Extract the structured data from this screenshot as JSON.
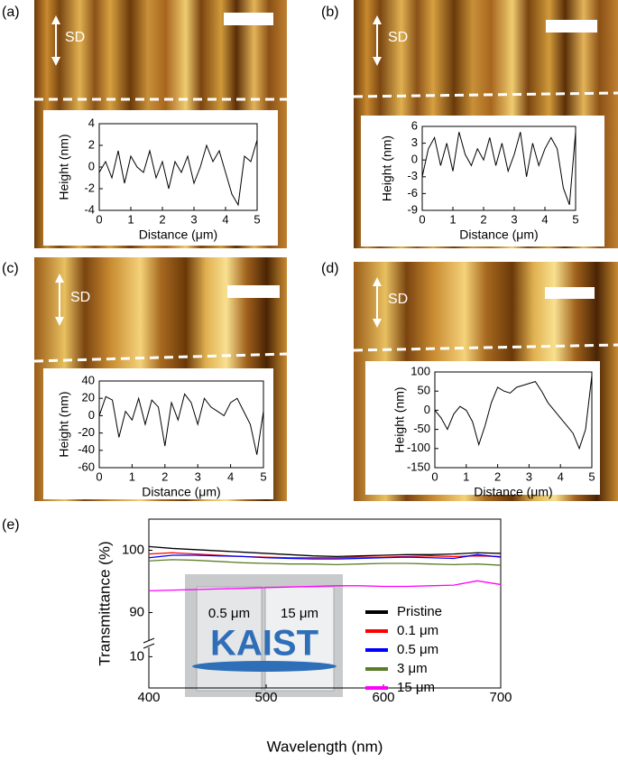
{
  "chart_data": [
    {
      "type": "line",
      "panel_label": "(a)",
      "annotation": "SD",
      "xlabel": "Distance (μm)",
      "ylabel": "Height (nm)",
      "x": [
        0,
        0.2,
        0.4,
        0.6,
        0.8,
        1,
        1.2,
        1.4,
        1.6,
        1.8,
        2,
        2.2,
        2.4,
        2.6,
        2.8,
        3,
        3.2,
        3.4,
        3.6,
        3.8,
        4,
        4.2,
        4.4,
        4.6,
        4.8,
        5
      ],
      "values": [
        -0.5,
        0.5,
        -1,
        1.5,
        -1.5,
        1,
        0,
        -0.5,
        1.5,
        -1,
        0.5,
        -2,
        0.5,
        -0.5,
        1,
        -1.5,
        0,
        2,
        0.5,
        1.5,
        -0.5,
        -2.5,
        -3.5,
        1,
        0.5,
        2.5
      ],
      "color": "#000000",
      "xlim": [
        0,
        5
      ],
      "xticks": [
        0,
        1,
        2,
        3,
        4,
        5
      ],
      "ylim": [
        -4,
        4
      ],
      "yticks": [
        -4,
        -2,
        0,
        2,
        4
      ]
    },
    {
      "type": "line",
      "panel_label": "(b)",
      "annotation": "SD",
      "xlabel": "Distance (μm)",
      "ylabel": "Height (nm)",
      "x": [
        0,
        0.2,
        0.4,
        0.6,
        0.8,
        1,
        1.2,
        1.4,
        1.6,
        1.8,
        2,
        2.2,
        2.4,
        2.6,
        2.8,
        3,
        3.2,
        3.4,
        3.6,
        3.8,
        4,
        4.2,
        4.4,
        4.6,
        4.8,
        5
      ],
      "values": [
        -3,
        2,
        4,
        -1,
        3,
        -2,
        5,
        1,
        -1,
        2,
        0,
        4,
        -1,
        3,
        -2,
        1,
        5,
        -3,
        3,
        -1,
        2,
        4,
        2,
        -5,
        -8,
        5
      ],
      "color": "#000000",
      "xlim": [
        0,
        5
      ],
      "xticks": [
        0,
        1,
        2,
        3,
        4,
        5
      ],
      "ylim": [
        -9,
        6
      ],
      "yticks": [
        -9,
        -6,
        -3,
        0,
        3,
        6
      ]
    },
    {
      "type": "line",
      "panel_label": "(c)",
      "annotation": "SD",
      "xlabel": "Distance (μm)",
      "ylabel": "Height (nm)",
      "x": [
        0,
        0.2,
        0.4,
        0.6,
        0.8,
        1,
        1.2,
        1.4,
        1.6,
        1.8,
        2,
        2.2,
        2.4,
        2.6,
        2.8,
        3,
        3.2,
        3.4,
        3.6,
        3.8,
        4,
        4.2,
        4.4,
        4.6,
        4.8,
        5
      ],
      "values": [
        0,
        22,
        18,
        -25,
        5,
        -5,
        20,
        -10,
        18,
        10,
        -35,
        15,
        -5,
        25,
        15,
        -10,
        20,
        10,
        5,
        0,
        15,
        20,
        5,
        -10,
        -45,
        5
      ],
      "color": "#000000",
      "xlim": [
        0,
        5
      ],
      "xticks": [
        0,
        1,
        2,
        3,
        4,
        5
      ],
      "ylim": [
        -60,
        40
      ],
      "yticks": [
        -60,
        -40,
        -20,
        0,
        20,
        40
      ]
    },
    {
      "type": "line",
      "panel_label": "(d)",
      "annotation": "SD",
      "xlabel": "Distance (μm)",
      "ylabel": "Height (nm)",
      "x": [
        0,
        0.2,
        0.4,
        0.6,
        0.8,
        1,
        1.2,
        1.4,
        1.6,
        1.8,
        2,
        2.2,
        2.4,
        2.6,
        2.8,
        3,
        3.2,
        3.4,
        3.6,
        3.8,
        4,
        4.2,
        4.4,
        4.6,
        4.8,
        5
      ],
      "values": [
        0,
        -20,
        -50,
        -10,
        10,
        0,
        -30,
        -90,
        -40,
        20,
        60,
        50,
        45,
        60,
        65,
        70,
        75,
        50,
        20,
        0,
        -20,
        -40,
        -60,
        -100,
        -50,
        90
      ],
      "color": "#000000",
      "xlim": [
        0,
        5
      ],
      "xticks": [
        0,
        1,
        2,
        3,
        4,
        5
      ],
      "ylim": [
        -150,
        100
      ],
      "yticks": [
        -150,
        -100,
        -50,
        0,
        50,
        100
      ]
    },
    {
      "type": "line",
      "panel_label": "(e)",
      "xlabel": "Wavelength (nm)",
      "ylabel": "Transmittance (%)",
      "photo_labels": [
        "0.5 μm",
        "15 μm",
        "KAIST"
      ],
      "x": [
        400,
        420,
        440,
        460,
        480,
        500,
        520,
        540,
        560,
        580,
        600,
        620,
        640,
        660,
        680,
        700
      ],
      "series": [
        {
          "name": "Pristine",
          "color": "#000000",
          "values": [
            100.6,
            100.3,
            100.1,
            99.9,
            99.7,
            99.5,
            99.3,
            99.1,
            99.0,
            99.1,
            99.2,
            99.3,
            99.3,
            99.4,
            99.6,
            99.5
          ]
        },
        {
          "name": "0.1 μm",
          "color": "#ff0000",
          "values": [
            99.4,
            99.6,
            99.4,
            99.2,
            99.0,
            98.9,
            98.8,
            98.8,
            98.8,
            98.9,
            98.9,
            99.0,
            99.1,
            99.0,
            99.1,
            99.0
          ]
        },
        {
          "name": "0.5 μm",
          "color": "#0000ff",
          "values": [
            98.8,
            99.2,
            99.2,
            99.1,
            99.0,
            98.8,
            98.7,
            98.6,
            98.6,
            98.7,
            98.8,
            98.9,
            98.8,
            98.7,
            99.3,
            98.9
          ]
        },
        {
          "name": "3 μm",
          "color": "#5a7d2a",
          "values": [
            98.3,
            98.5,
            98.4,
            98.2,
            98.0,
            97.9,
            97.8,
            97.8,
            97.7,
            97.8,
            97.9,
            97.9,
            97.8,
            97.7,
            97.8,
            97.6
          ]
        },
        {
          "name": "15 μm",
          "color": "#ff00ff",
          "values": [
            93.5,
            93.6,
            93.7,
            93.8,
            93.9,
            94.0,
            94.1,
            94.2,
            94.3,
            94.3,
            94.2,
            94.2,
            94.3,
            94.4,
            95.1,
            94.5
          ]
        }
      ],
      "xlim": [
        400,
        700
      ],
      "xticks": [
        400,
        500,
        600,
        700
      ],
      "ylim": [
        85,
        105
      ],
      "ylim_lower": [
        0,
        13
      ],
      "yticks": [
        10,
        90,
        100
      ]
    }
  ]
}
